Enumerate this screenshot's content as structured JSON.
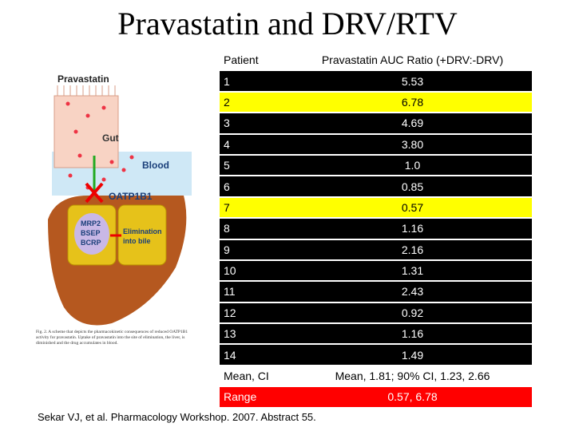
{
  "title": "Pravastatin and DRV/RTV",
  "figure": {
    "labels": {
      "drug": "Pravastatin",
      "gut": "Gut",
      "blood": "Blood",
      "transporter": "OATP1B1",
      "efflux": [
        "MRP2",
        "BSEP",
        "BCRP"
      ],
      "elimination": [
        "Elimination",
        "into bile"
      ]
    },
    "caption": "Fig. 2. A scheme that depicts the pharmacokinetic consequences of reduced OATP1B1 activity for pravastatin. Uptake of pravastatin into the site of elimination, the liver, is diminished and the drug accumulates in blood."
  },
  "table": {
    "header": [
      "Patient",
      "Pravastatin AUC Ratio (+DRV:-DRV)"
    ],
    "rows": [
      [
        "1",
        "5.53"
      ],
      [
        "2",
        "6.78"
      ],
      [
        "3",
        "4.69"
      ],
      [
        "4",
        "3.80"
      ],
      [
        "5",
        "1.0"
      ],
      [
        "6",
        "0.85"
      ],
      [
        "7",
        "0.57"
      ],
      [
        "8",
        "1.16"
      ],
      [
        "9",
        "2.16"
      ],
      [
        "10",
        "1.31"
      ],
      [
        "11",
        "2.43"
      ],
      [
        "12",
        "0.92"
      ],
      [
        "13",
        "1.16"
      ],
      [
        "14",
        "1.49"
      ]
    ],
    "summary": [
      [
        "Mean, CI",
        "Mean, 1.81; 90% CI, 1.23, 2.66"
      ],
      [
        "Range",
        "0.57, 6.78"
      ]
    ]
  },
  "citation": "Sekar VJ, et al. Pharmacology Workshop. 2007. Abstract 55."
}
